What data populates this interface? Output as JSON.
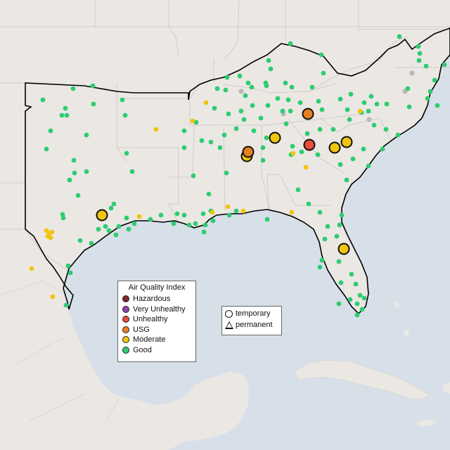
{
  "colors": {
    "water": "#d5dfe8",
    "land": "#ece9e4",
    "state_border": "#c8c4c0",
    "region_outline": "#000000",
    "hazardous": "#7e2a2a",
    "very_unhealthy": "#8e44ad",
    "unhealthy": "#e74c3c",
    "usg": "#e67e22",
    "moderate": "#f1c40f",
    "good": "#2ecc71",
    "no_data": "#b9b9b9"
  },
  "aqi_legend": {
    "title": "Air Quality Index",
    "items": [
      {
        "label": "Hazardous",
        "color": "#7e2a2a"
      },
      {
        "label": "Very Unhealthy",
        "color": "#8e44ad"
      },
      {
        "label": "Unhealthy",
        "color": "#e74c3c"
      },
      {
        "label": "USG",
        "color": "#e67e22"
      },
      {
        "label": "Moderate",
        "color": "#f1c40f"
      },
      {
        "label": "Good",
        "color": "#2ecc71"
      }
    ]
  },
  "type_legend": {
    "items": [
      {
        "label": "temporary",
        "shape": "circle"
      },
      {
        "label": "permanent",
        "shape": "triangle"
      }
    ]
  }
}
